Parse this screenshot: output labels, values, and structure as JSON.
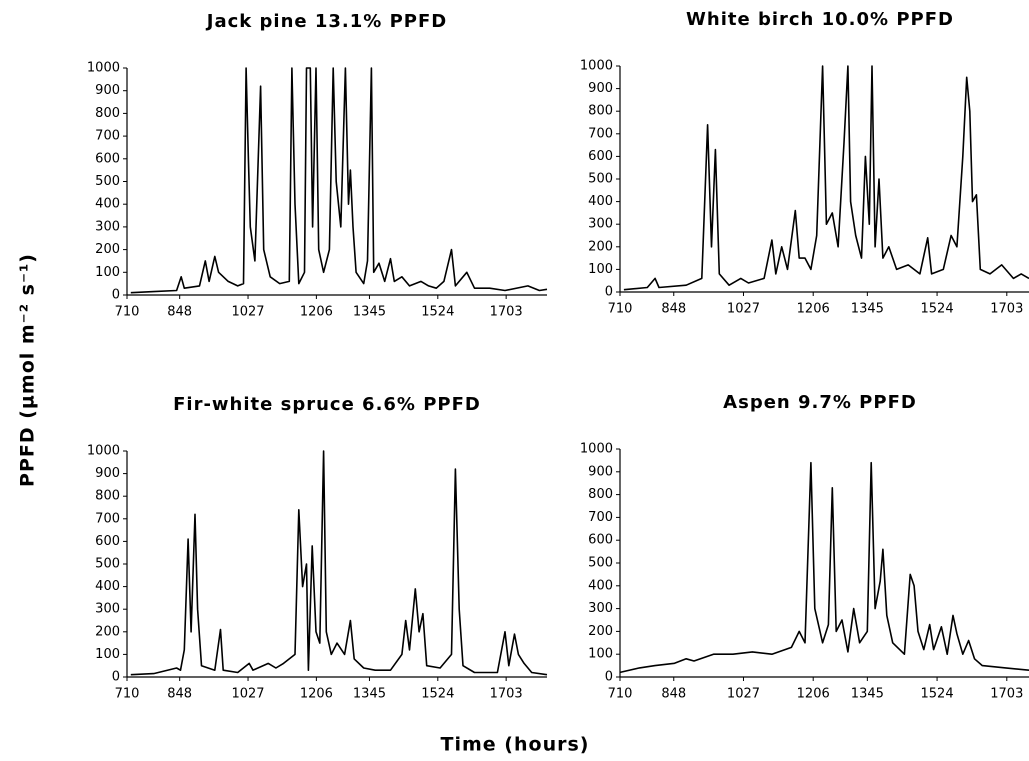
{
  "shared_ylabel": "PPFD (µmol m⁻² s⁻¹)",
  "shared_xlabel": "Time (hours)",
  "chart_data": [
    {
      "type": "line",
      "title": "Jack pine 13.1% PPFD",
      "color": "#000000",
      "xlim": [
        710,
        1810
      ],
      "xticks": [
        710,
        848,
        1027,
        1206,
        1345,
        1524,
        1703
      ],
      "ylim": [
        0,
        1000
      ],
      "yticks": [
        0,
        100,
        200,
        300,
        400,
        500,
        600,
        700,
        800,
        900,
        1000
      ],
      "x": [
        720,
        780,
        840,
        852,
        860,
        900,
        915,
        925,
        940,
        950,
        975,
        1000,
        1015,
        1022,
        1028,
        1033,
        1045,
        1060,
        1068,
        1085,
        1110,
        1135,
        1142,
        1150,
        1160,
        1175,
        1180,
        1190,
        1196,
        1205,
        1212,
        1225,
        1240,
        1250,
        1258,
        1270,
        1282,
        1290,
        1295,
        1302,
        1310,
        1330,
        1340,
        1350,
        1356,
        1370,
        1385,
        1400,
        1410,
        1430,
        1450,
        1480,
        1500,
        1520,
        1540,
        1560,
        1570,
        1600,
        1620,
        1660,
        1700,
        1760,
        1790,
        1810
      ],
      "values": [
        10,
        15,
        20,
        80,
        30,
        40,
        150,
        60,
        170,
        100,
        60,
        40,
        50,
        1000,
        600,
        300,
        150,
        920,
        200,
        80,
        50,
        60,
        1000,
        400,
        50,
        100,
        1000,
        1000,
        300,
        1000,
        200,
        100,
        200,
        1000,
        500,
        300,
        1000,
        400,
        550,
        300,
        100,
        50,
        150,
        1000,
        100,
        140,
        60,
        160,
        60,
        80,
        40,
        60,
        40,
        30,
        60,
        200,
        40,
        100,
        30,
        30,
        20,
        40,
        20,
        25
      ]
    },
    {
      "type": "line",
      "title": "White birch 10.0% PPFD",
      "color": "#000000",
      "xlim": [
        710,
        1760
      ],
      "xticks": [
        710,
        848,
        1027,
        1206,
        1345,
        1524,
        1703
      ],
      "ylim": [
        0,
        1000
      ],
      "yticks": [
        0,
        100,
        200,
        300,
        400,
        500,
        600,
        700,
        800,
        900,
        1000
      ],
      "x": [
        720,
        780,
        800,
        810,
        880,
        920,
        935,
        945,
        955,
        965,
        990,
        1020,
        1040,
        1080,
        1100,
        1110,
        1125,
        1140,
        1160,
        1170,
        1185,
        1200,
        1215,
        1230,
        1240,
        1255,
        1270,
        1285,
        1295,
        1302,
        1315,
        1330,
        1340,
        1350,
        1357,
        1365,
        1375,
        1385,
        1400,
        1420,
        1450,
        1480,
        1500,
        1510,
        1540,
        1560,
        1575,
        1590,
        1600,
        1608,
        1615,
        1625,
        1635,
        1660,
        1690,
        1720,
        1740,
        1760
      ],
      "values": [
        10,
        20,
        60,
        20,
        30,
        60,
        740,
        200,
        630,
        80,
        30,
        60,
        40,
        60,
        230,
        80,
        200,
        100,
        360,
        150,
        150,
        100,
        250,
        1000,
        300,
        350,
        200,
        660,
        1000,
        400,
        250,
        150,
        600,
        300,
        1000,
        200,
        500,
        150,
        200,
        100,
        120,
        80,
        240,
        80,
        100,
        250,
        200,
        600,
        950,
        800,
        400,
        430,
        100,
        80,
        120,
        60,
        80,
        60
      ]
    },
    {
      "type": "line",
      "title": "Fir-white spruce 6.6% PPFD",
      "color": "#000000",
      "xlim": [
        710,
        1810
      ],
      "xticks": [
        710,
        848,
        1027,
        1206,
        1345,
        1524,
        1703
      ],
      "ylim": [
        0,
        1000
      ],
      "yticks": [
        0,
        100,
        200,
        300,
        400,
        500,
        600,
        700,
        800,
        900,
        1000
      ],
      "x": [
        720,
        780,
        840,
        850,
        860,
        870,
        878,
        888,
        895,
        905,
        940,
        955,
        962,
        1000,
        1030,
        1040,
        1080,
        1100,
        1120,
        1150,
        1160,
        1170,
        1180,
        1185,
        1195,
        1205,
        1215,
        1225,
        1232,
        1245,
        1260,
        1280,
        1295,
        1305,
        1330,
        1360,
        1400,
        1430,
        1440,
        1450,
        1465,
        1475,
        1485,
        1495,
        1530,
        1560,
        1570,
        1580,
        1590,
        1620,
        1680,
        1700,
        1710,
        1725,
        1735,
        1750,
        1770,
        1810
      ],
      "values": [
        10,
        15,
        40,
        30,
        120,
        610,
        200,
        720,
        300,
        50,
        30,
        210,
        30,
        20,
        60,
        30,
        60,
        40,
        60,
        100,
        740,
        400,
        500,
        30,
        580,
        200,
        150,
        1000,
        200,
        100,
        150,
        100,
        250,
        80,
        40,
        30,
        30,
        100,
        250,
        120,
        390,
        200,
        280,
        50,
        40,
        100,
        920,
        300,
        50,
        20,
        20,
        200,
        50,
        190,
        100,
        60,
        20,
        10
      ]
    },
    {
      "type": "line",
      "title": "Aspen 9.7% PPFD",
      "color": "#000000",
      "xlim": [
        710,
        1760
      ],
      "xticks": [
        710,
        848,
        1027,
        1206,
        1345,
        1524,
        1703
      ],
      "ylim": [
        0,
        1000
      ],
      "yticks": [
        0,
        100,
        200,
        300,
        400,
        500,
        600,
        700,
        800,
        900,
        1000
      ],
      "x": [
        710,
        760,
        800,
        850,
        880,
        900,
        950,
        1000,
        1050,
        1100,
        1150,
        1170,
        1185,
        1200,
        1210,
        1230,
        1245,
        1255,
        1265,
        1280,
        1295,
        1310,
        1325,
        1345,
        1355,
        1365,
        1378,
        1385,
        1395,
        1410,
        1440,
        1455,
        1465,
        1475,
        1490,
        1505,
        1515,
        1535,
        1550,
        1565,
        1575,
        1590,
        1605,
        1620,
        1640,
        1700,
        1760
      ],
      "values": [
        20,
        40,
        50,
        60,
        80,
        70,
        100,
        100,
        110,
        100,
        130,
        200,
        150,
        940,
        300,
        150,
        230,
        830,
        200,
        250,
        110,
        300,
        150,
        200,
        940,
        300,
        420,
        560,
        270,
        150,
        100,
        450,
        400,
        200,
        120,
        230,
        120,
        220,
        100,
        270,
        190,
        100,
        160,
        80,
        50,
        40,
        30
      ]
    }
  ]
}
